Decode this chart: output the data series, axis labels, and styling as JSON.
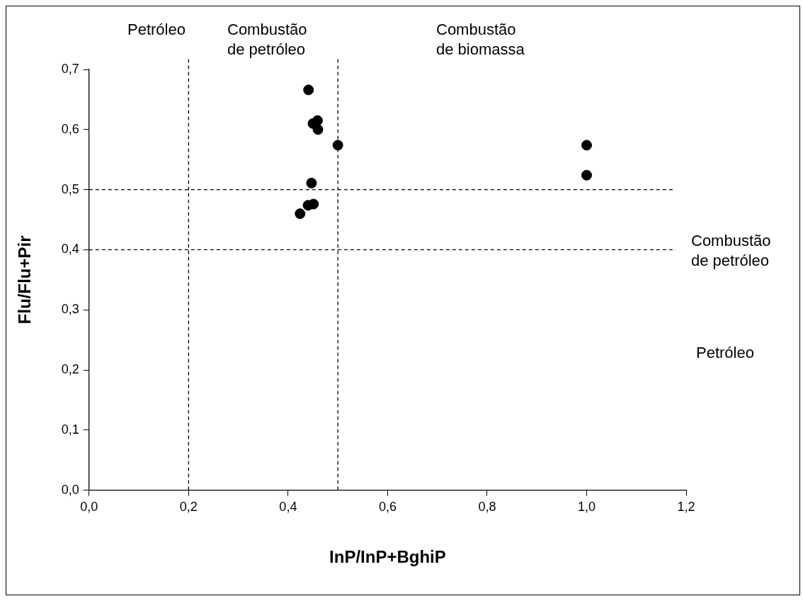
{
  "chart_data": {
    "type": "scatter",
    "xlabel": "InP/InP+BghiP",
    "ylabel": "Flu/Flu+Pir",
    "series": [
      {
        "color": "#000000",
        "x": [
          0.441,
          0.45,
          0.459,
          0.46,
          0.5,
          1.0,
          1.0,
          0.447,
          0.424,
          0.44,
          0.451
        ],
        "values": [
          0.666,
          0.61,
          0.615,
          0.6,
          0.574,
          0.574,
          0.524,
          0.511,
          0.46,
          0.474,
          0.476
        ]
      }
    ],
    "xlim": [
      0,
      1.2
    ],
    "xticks": [
      {
        "value": 0,
        "label": "0,0"
      },
      {
        "value": 0.2,
        "label": "0,2"
      },
      {
        "value": 0.4,
        "label": "0,4"
      },
      {
        "value": 0.6,
        "label": "0,6"
      },
      {
        "value": 0.8,
        "label": "0,8"
      },
      {
        "value": 1.0,
        "label": "1,0"
      },
      {
        "value": 1.2,
        "label": "1,2"
      }
    ],
    "ylim": [
      0,
      0.7
    ],
    "yticks": [
      {
        "value": 0,
        "label": "0,0"
      },
      {
        "value": 0.1,
        "label": "0,1"
      },
      {
        "value": 0.2,
        "label": "0,2"
      },
      {
        "value": 0.3,
        "label": "0,3"
      },
      {
        "value": 0.4,
        "label": "0,4"
      },
      {
        "value": 0.5,
        "label": "0,5"
      },
      {
        "value": 0.6,
        "label": "0,6"
      },
      {
        "value": 0.7,
        "label": "0,7"
      }
    ],
    "ref_lines": [
      {
        "axis": "x",
        "value": 0.2,
        "line_style": "dashed",
        "color": "#000000"
      },
      {
        "axis": "x",
        "value": 0.5,
        "line_style": "dashed",
        "color": "#000000"
      },
      {
        "axis": "y",
        "value": 0.5,
        "line_style": "dashed",
        "color": "#000000"
      },
      {
        "axis": "y",
        "value": 0.4,
        "line_style": "dashed",
        "color": "#000000"
      }
    ],
    "annotations": [
      "Petróleo",
      "Combustão de petróleo",
      "Combustão de biomassa",
      "Combustão de petróleo",
      "Petróleo"
    ],
    "marker": "circle",
    "grid": false,
    "legend": false
  }
}
